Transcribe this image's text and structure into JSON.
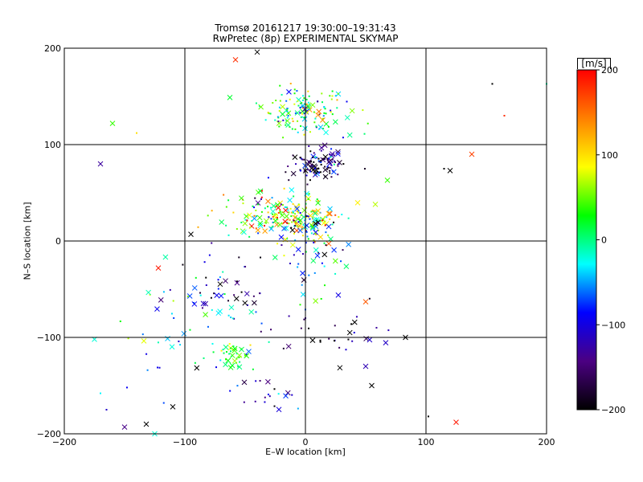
{
  "figure": {
    "title_line1": "Tromsø 20161217 19:30:00–19:31:43",
    "title_line2": "RwPretec (8p) EXPERIMENTAL SKYMAP"
  },
  "chart_data": {
    "type": "scatter",
    "xlabel": "E–W location [km]",
    "ylabel": "N–S location [km]",
    "xlim": [
      -200,
      200
    ],
    "ylim": [
      -200,
      200
    ],
    "xticks": [
      -200,
      -100,
      0,
      100,
      200
    ],
    "yticks": [
      -200,
      -100,
      0,
      100,
      200
    ],
    "grid": true,
    "colorbar": {
      "label": "[m/s]",
      "range": [
        -200,
        200
      ],
      "ticks": [
        -200,
        -100,
        0,
        100,
        200
      ],
      "colormap": [
        "#000000",
        "#4b0082",
        "#0000ff",
        "#00ffff",
        "#00ff00",
        "#ffff00",
        "#ff8000",
        "#ff0000"
      ]
    },
    "clusters": [
      {
        "x": 0,
        "y": 135,
        "sx": 18,
        "sy": 12,
        "n": 140,
        "v": 10,
        "vs": 60
      },
      {
        "x": 10,
        "y": 78,
        "sx": 12,
        "sy": 8,
        "n": 110,
        "v": -160,
        "vs": 50
      },
      {
        "x": -10,
        "y": 25,
        "sx": 22,
        "sy": 10,
        "n": 180,
        "v": 60,
        "vs": 80
      },
      {
        "x": 5,
        "y": -10,
        "sx": 15,
        "sy": 25,
        "n": 70,
        "v": -60,
        "vs": 80
      },
      {
        "x": -70,
        "y": -60,
        "sx": 20,
        "sy": 20,
        "n": 60,
        "v": -100,
        "vs": 90
      },
      {
        "x": -60,
        "y": -120,
        "sx": 12,
        "sy": 8,
        "n": 45,
        "v": 20,
        "vs": 40
      },
      {
        "x": -30,
        "y": -160,
        "sx": 15,
        "sy": 10,
        "n": 20,
        "v": -130,
        "vs": 40
      },
      {
        "x": -45,
        "y": 30,
        "sx": 15,
        "sy": 15,
        "n": 40,
        "v": 40,
        "vs": 100
      },
      {
        "x": -120,
        "y": -90,
        "sx": 15,
        "sy": 30,
        "n": 25,
        "v": -40,
        "vs": 80
      },
      {
        "x": 25,
        "y": -95,
        "sx": 25,
        "sy": 15,
        "n": 30,
        "v": -170,
        "vs": 50
      }
    ],
    "singles": [
      {
        "x": 155,
        "y": 163,
        "v": -200,
        "m": "."
      },
      {
        "x": 200,
        "y": 163,
        "v": -10,
        "m": "."
      },
      {
        "x": 165,
        "y": 130,
        "v": 180,
        "m": "."
      },
      {
        "x": 138,
        "y": 90,
        "v": 170,
        "m": "x"
      },
      {
        "x": 120,
        "y": 73,
        "v": -200,
        "m": "x"
      },
      {
        "x": 115,
        "y": 75,
        "v": -200,
        "m": "."
      },
      {
        "x": -160,
        "y": 122,
        "v": 40,
        "m": "x"
      },
      {
        "x": -170,
        "y": 80,
        "v": -130,
        "m": "x"
      },
      {
        "x": -140,
        "y": 112,
        "v": 100,
        "m": "."
      },
      {
        "x": -58,
        "y": 188,
        "v": 180,
        "m": "x"
      },
      {
        "x": -40,
        "y": 196,
        "v": -200,
        "m": "x"
      },
      {
        "x": 125,
        "y": -188,
        "v": 190,
        "m": "x"
      },
      {
        "x": 102,
        "y": -182,
        "v": -200,
        "m": "."
      },
      {
        "x": 83,
        "y": -100,
        "v": -200,
        "m": "x"
      },
      {
        "x": -175,
        "y": -102,
        "v": -20,
        "m": "x"
      },
      {
        "x": -150,
        "y": -193,
        "v": -140,
        "m": "x"
      },
      {
        "x": -132,
        "y": -190,
        "v": -200,
        "m": "x"
      },
      {
        "x": -125,
        "y": -200,
        "v": -20,
        "m": "x"
      },
      {
        "x": -110,
        "y": -172,
        "v": -200,
        "m": "x"
      },
      {
        "x": -165,
        "y": -175,
        "v": -110,
        "m": "."
      },
      {
        "x": -170,
        "y": -158,
        "v": -30,
        "m": "."
      },
      {
        "x": -148,
        "y": -152,
        "v": -90,
        "m": "."
      },
      {
        "x": -122,
        "y": -28,
        "v": 190,
        "m": "x"
      },
      {
        "x": -95,
        "y": 7,
        "v": -200,
        "m": "x"
      },
      {
        "x": 68,
        "y": 63,
        "v": 40,
        "m": "x"
      },
      {
        "x": 58,
        "y": 38,
        "v": 70,
        "m": "x"
      },
      {
        "x": 50,
        "y": -63,
        "v": 160,
        "m": "x"
      },
      {
        "x": 55,
        "y": -150,
        "v": -200,
        "m": "x"
      },
      {
        "x": 50,
        "y": -130,
        "v": -120,
        "m": "x"
      }
    ]
  }
}
